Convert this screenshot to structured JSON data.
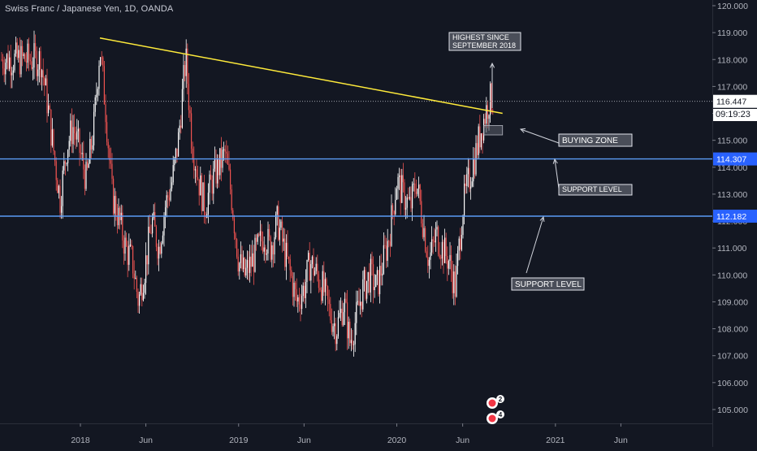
{
  "header": {
    "symbol_title": "Swiss Franc / Japanese Yen, 1D, OANDA"
  },
  "clock": "09:19:23",
  "colors": {
    "background": "#131722",
    "candle_up": "#ffffff",
    "candle_down": "#ef5350",
    "trendline": "#ffeb3b",
    "support_line": "#5b9cf6",
    "price_dotted": "#b2b5be"
  },
  "chart_data": {
    "type": "candlestick",
    "title": "Swiss Franc / Japanese Yen, 1D, OANDA",
    "xlabel": "",
    "ylabel": "",
    "ylim": [
      104.7,
      120.2
    ],
    "grid": false,
    "y_ticks": [
      "120.000",
      "119.000",
      "118.000",
      "117.000",
      "116.000",
      "115.000",
      "114.000",
      "113.000",
      "112.000",
      "111.000",
      "110.000",
      "109.000",
      "108.000",
      "107.000",
      "106.000",
      "105.000"
    ],
    "x_ticks": [
      "2018",
      "Jun",
      "2019",
      "Jun",
      "2020",
      "Jun",
      "2021",
      "Jun"
    ],
    "price_path": [
      [
        "2017-10-01",
        118.0
      ],
      [
        "2017-10-15",
        116.6
      ],
      [
        "2017-11-01",
        114.5
      ],
      [
        "2017-11-15",
        112.8
      ],
      [
        "2017-12-01",
        114.8
      ],
      [
        "2017-12-15",
        115.5
      ],
      [
        "2018-01-01",
        114.5
      ],
      [
        "2018-01-15",
        113.5
      ],
      [
        "2018-02-01",
        115.5
      ],
      [
        "2018-02-15",
        118.5
      ],
      [
        "2018-03-01",
        116.0
      ],
      [
        "2018-03-15",
        113.0
      ],
      [
        "2018-04-01",
        112.0
      ],
      [
        "2018-04-15",
        111.0
      ],
      [
        "2018-05-01",
        110.5
      ],
      [
        "2018-05-15",
        109.0
      ],
      [
        "2018-06-01",
        110.5
      ],
      [
        "2018-06-15",
        112.0
      ],
      [
        "2018-07-01",
        111.0
      ],
      [
        "2018-07-15",
        112.5
      ],
      [
        "2018-08-01",
        113.5
      ],
      [
        "2018-08-15",
        115.0
      ],
      [
        "2018-09-01",
        118.1
      ],
      [
        "2018-09-15",
        115.0
      ],
      [
        "2018-10-01",
        113.5
      ],
      [
        "2018-10-15",
        112.5
      ],
      [
        "2018-11-01",
        113.5
      ],
      [
        "2018-11-15",
        114.0
      ],
      [
        "2018-12-01",
        114.5
      ],
      [
        "2018-12-15",
        113.0
      ],
      [
        "2019-01-01",
        110.5
      ],
      [
        "2019-01-15",
        110.0
      ],
      [
        "2019-02-01",
        110.5
      ],
      [
        "2019-02-15",
        111.0
      ],
      [
        "2019-03-01",
        111.5
      ],
      [
        "2019-03-15",
        111.0
      ],
      [
        "2019-04-01",
        112.0
      ],
      [
        "2019-04-15",
        111.0
      ],
      [
        "2019-05-01",
        110.0
      ],
      [
        "2019-05-15",
        109.0
      ],
      [
        "2019-06-01",
        109.5
      ],
      [
        "2019-06-15",
        110.5
      ],
      [
        "2019-07-01",
        110.0
      ],
      [
        "2019-07-15",
        109.5
      ],
      [
        "2019-08-01",
        108.5
      ],
      [
        "2019-08-15",
        108.0
      ],
      [
        "2019-09-01",
        109.0
      ],
      [
        "2019-09-15",
        107.5
      ],
      [
        "2019-10-01",
        108.5
      ],
      [
        "2019-10-15",
        109.5
      ],
      [
        "2019-11-01",
        110.0
      ],
      [
        "2019-11-15",
        109.5
      ],
      [
        "2019-12-01",
        110.5
      ],
      [
        "2019-12-15",
        111.5
      ],
      [
        "2020-01-01",
        113.5
      ],
      [
        "2020-01-15",
        113.0
      ],
      [
        "2020-02-01",
        112.5
      ],
      [
        "2020-02-15",
        113.5
      ],
      [
        "2020-03-01",
        112.0
      ],
      [
        "2020-03-15",
        110.5
      ],
      [
        "2020-04-01",
        111.5
      ],
      [
        "2020-04-15",
        111.0
      ],
      [
        "2020-05-01",
        110.5
      ],
      [
        "2020-05-15",
        109.5
      ],
      [
        "2020-06-01",
        112.5
      ],
      [
        "2020-06-15",
        113.5
      ],
      [
        "2020-07-01",
        114.5
      ],
      [
        "2020-07-15",
        115.5
      ],
      [
        "2020-08-01",
        116.5
      ]
    ],
    "annotations": {
      "trendline": {
        "from": [
          "2018-02-15",
          118.8
        ],
        "to": [
          "2020-09-01",
          116.0
        ]
      },
      "support_levels": [
        {
          "price": 114.307,
          "label": "114.307"
        },
        {
          "price": 112.182,
          "label": "112.182"
        }
      ],
      "current_price": {
        "price": 116.447,
        "label": "116.447"
      },
      "boxes": [
        {
          "text": "HIGHEST SINCE SEPTEMBER 2018"
        },
        {
          "text": "BUYING ZONE"
        },
        {
          "text": "SUPPORT LEVEL"
        },
        {
          "text": "SUPPORT LEVEL"
        }
      ],
      "buying_zone": {
        "from": "2020-07-20",
        "to": "2020-09-01",
        "low": 115.2,
        "high": 115.55
      },
      "event_markers": [
        "2",
        "4"
      ]
    }
  }
}
